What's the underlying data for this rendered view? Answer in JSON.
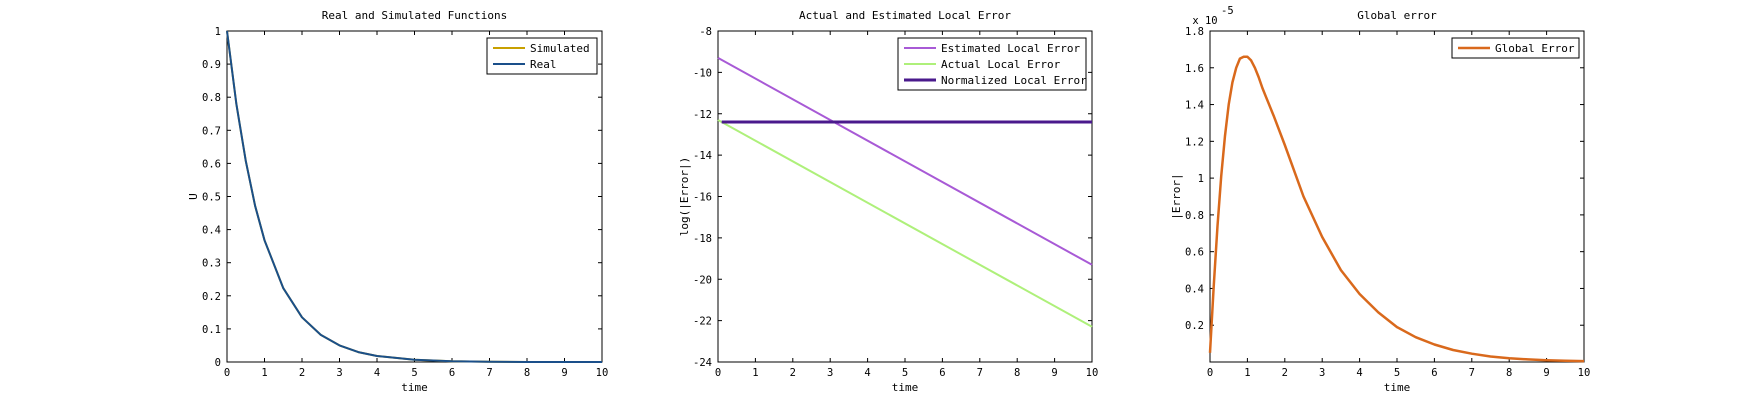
{
  "chart_data": [
    {
      "type": "line",
      "title": "Real and Simulated Functions",
      "xlabel": "time",
      "ylabel": "U",
      "xlim": [
        0,
        10
      ],
      "ylim": [
        0,
        1
      ],
      "xticks": [
        0,
        1,
        2,
        3,
        4,
        5,
        6,
        7,
        8,
        9,
        10
      ],
      "yticks": [
        0,
        0.1,
        0.2,
        0.3,
        0.4,
        0.5,
        0.6,
        0.7,
        0.8,
        0.9,
        1
      ],
      "ytick_labels": [
        "0",
        "0.1",
        "0.2",
        "0.3",
        "0.4",
        "0.5",
        "0.6",
        "0.7",
        "0.8",
        "0.9",
        "1"
      ],
      "grid": false,
      "legend": "top-right",
      "series": [
        {
          "name": "Simulated",
          "color": "#c8a000",
          "width": 2,
          "x": [
            0,
            0.25,
            0.5,
            0.75,
            1,
            1.5,
            2,
            2.5,
            3,
            3.5,
            4,
            5,
            6,
            7,
            8,
            9,
            10
          ],
          "y": [
            1,
            0.779,
            0.607,
            0.472,
            0.368,
            0.223,
            0.135,
            0.082,
            0.05,
            0.03,
            0.018,
            0.007,
            0.002,
            0.001,
            0,
            0,
            0
          ]
        },
        {
          "name": "Real",
          "color": "#1a4f8a",
          "width": 2,
          "x": [
            0,
            0.25,
            0.5,
            0.75,
            1,
            1.5,
            2,
            2.5,
            3,
            3.5,
            4,
            5,
            6,
            7,
            8,
            9,
            10
          ],
          "y": [
            1,
            0.779,
            0.607,
            0.472,
            0.368,
            0.223,
            0.135,
            0.082,
            0.05,
            0.03,
            0.018,
            0.007,
            0.002,
            0.001,
            0,
            0,
            0
          ]
        }
      ]
    },
    {
      "type": "line",
      "title": "Actual and Estimated Local Error",
      "xlabel": "time",
      "ylabel": "log(|Error|)",
      "xlim": [
        0,
        10
      ],
      "ylim": [
        -24,
        -8
      ],
      "xticks": [
        0,
        1,
        2,
        3,
        4,
        5,
        6,
        7,
        8,
        9,
        10
      ],
      "yticks": [
        -24,
        -22,
        -20,
        -18,
        -16,
        -14,
        -12,
        -10,
        -8
      ],
      "ytick_labels": [
        "-24",
        "-22",
        "-20",
        "-18",
        "-16",
        "-14",
        "-12",
        "-10",
        "-8"
      ],
      "grid": false,
      "legend": "top-right",
      "series": [
        {
          "name": "Estimated Local Error",
          "color": "#a85ad6",
          "width": 2,
          "x": [
            0,
            10
          ],
          "y": [
            -9.3,
            -19.3
          ]
        },
        {
          "name": "Actual Local Error",
          "color": "#aef07a",
          "width": 2,
          "x": [
            0,
            10
          ],
          "y": [
            -12.3,
            -22.3
          ]
        },
        {
          "name": "Normalized Local Error",
          "color": "#4a1a8c",
          "width": 3,
          "x": [
            0.1,
            10
          ],
          "y": [
            -12.4,
            -12.4
          ]
        }
      ]
    },
    {
      "type": "line",
      "title": "Global error",
      "xlabel": "time",
      "ylabel": "|Error|",
      "xlim": [
        0,
        10
      ],
      "ylim": [
        0,
        1.8
      ],
      "xticks": [
        0,
        1,
        2,
        3,
        4,
        5,
        6,
        7,
        8,
        9,
        10
      ],
      "yticks": [
        0.2,
        0.4,
        0.6,
        0.8,
        1,
        1.2,
        1.4,
        1.6,
        1.8
      ],
      "ytick_labels": [
        "0.2",
        "0.4",
        "0.6",
        "0.8",
        "1",
        "1.2",
        "1.4",
        "1.6",
        "1.8"
      ],
      "y_exponent_base": "x 10",
      "y_exponent_power": "-5",
      "grid": false,
      "legend": "top-right",
      "series": [
        {
          "name": "Global Error",
          "color": "#d9691c",
          "width": 2.5,
          "x": [
            0,
            0.1,
            0.2,
            0.3,
            0.4,
            0.5,
            0.6,
            0.7,
            0.8,
            0.9,
            1,
            1.1,
            1.2,
            1.3,
            1.4,
            1.5,
            1.7,
            2,
            2.5,
            3,
            3.5,
            4,
            4.5,
            5,
            5.5,
            6,
            6.5,
            7,
            7.5,
            8,
            8.5,
            9,
            9.5,
            10
          ],
          "y": [
            0.05,
            0.41,
            0.74,
            1.01,
            1.23,
            1.4,
            1.52,
            1.6,
            1.65,
            1.66,
            1.66,
            1.64,
            1.6,
            1.55,
            1.49,
            1.44,
            1.34,
            1.18,
            0.9,
            0.68,
            0.5,
            0.37,
            0.27,
            0.19,
            0.135,
            0.095,
            0.065,
            0.045,
            0.03,
            0.02,
            0.014,
            0.01,
            0.007,
            0.005
          ]
        }
      ]
    }
  ]
}
